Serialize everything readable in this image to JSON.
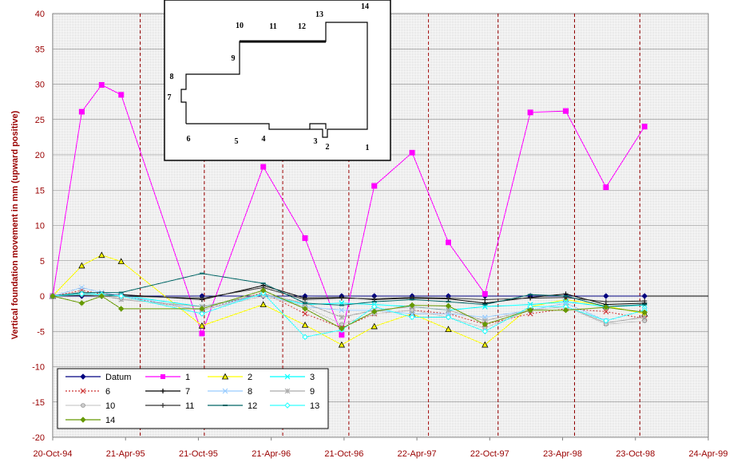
{
  "chart_data": {
    "type": "line",
    "ylabel": "Vertical foundation movement in mm (upward positive)",
    "ylim": [
      -20,
      40
    ],
    "yticks": [
      -20,
      -15,
      -10,
      -5,
      0,
      5,
      10,
      15,
      20,
      25,
      30,
      35,
      40
    ],
    "xlim": [
      "1994-10-20",
      "1999-04-24"
    ],
    "xticks": [
      {
        "date": "1994-10-20",
        "label": "20-Oct-94"
      },
      {
        "date": "1995-04-21",
        "label": "21-Apr-95"
      },
      {
        "date": "1995-10-21",
        "label": "21-Oct-95"
      },
      {
        "date": "1996-04-21",
        "label": "21-Apr-96"
      },
      {
        "date": "1996-10-21",
        "label": "21-Oct-96"
      },
      {
        "date": "1997-04-22",
        "label": "22-Apr-97"
      },
      {
        "date": "1997-10-22",
        "label": "22-Oct-97"
      },
      {
        "date": "1998-04-23",
        "label": "23-Apr-98"
      },
      {
        "date": "1998-10-23",
        "label": "23-Oct-98"
      },
      {
        "date": "1999-04-24",
        "label": "24-Apr-99"
      }
    ],
    "grid": true,
    "vertical_markers": [
      "1995-05-28",
      "1995-11-05",
      "1996-05-20",
      "1996-11-02",
      "1997-05-21",
      "1997-11-12",
      "1998-05-23",
      "1998-11-03"
    ],
    "x": [
      "1994-10-20",
      "1995-01-01",
      "1995-02-20",
      "1995-04-10",
      "1995-10-30",
      "1996-04-01",
      "1996-07-15",
      "1996-10-15",
      "1997-01-05",
      "1997-04-10",
      "1997-07-10",
      "1997-10-10",
      "1998-02-01",
      "1998-05-01",
      "1998-08-10",
      "1998-11-15"
    ],
    "series": [
      {
        "name": "Datum",
        "color": "#000080",
        "marker": "diamond",
        "values": [
          0,
          0,
          0,
          0,
          0,
          0,
          0,
          0,
          0,
          0,
          0,
          0,
          0,
          0,
          0,
          0
        ]
      },
      {
        "name": "1",
        "color": "#ff00ff",
        "marker": "square",
        "values": [
          0,
          26.1,
          29.9,
          28.5,
          -5.3,
          18.3,
          8.2,
          -5.5,
          15.6,
          20.3,
          7.6,
          0.3,
          26.0,
          26.2,
          15.4,
          24.0
        ]
      },
      {
        "name": "2",
        "color": "#ffff00",
        "marker": "triangle",
        "values": [
          0,
          4.3,
          5.8,
          4.9,
          -4.2,
          -1.2,
          -4.1,
          -6.9,
          -4.3,
          -2.5,
          -4.7,
          -6.9,
          -1.5,
          -0.5,
          -1.4,
          -2.5
        ]
      },
      {
        "name": "3",
        "color": "#00ffff",
        "marker": "x",
        "values": [
          0,
          0.5,
          0.2,
          0.1,
          -1.5,
          0.2,
          -1.2,
          -1.0,
          -1.2,
          -1.5,
          -2.0,
          -1.5,
          -1.2,
          -0.8,
          -1.5,
          -1.3
        ]
      },
      {
        "name": "6",
        "color": "#cc3333",
        "marker": "x",
        "dashed": true,
        "values": [
          0,
          0.8,
          0.3,
          0.0,
          -2.0,
          0.5,
          -2.5,
          -4.5,
          -2.5,
          -2.0,
          -2.5,
          -4.0,
          -2.5,
          -1.8,
          -2.2,
          -3.2
        ]
      },
      {
        "name": "7",
        "color": "#000000",
        "marker": "plus",
        "values": [
          0,
          0.3,
          0.2,
          0.2,
          -0.5,
          1.5,
          -0.3,
          -0.2,
          -0.5,
          -0.3,
          -0.4,
          -1.0,
          -0.2,
          0.3,
          -1.2,
          -1.0
        ]
      },
      {
        "name": "8",
        "color": "#99ccff",
        "marker": "x",
        "values": [
          0,
          1.2,
          0.5,
          0.1,
          -2.0,
          0.3,
          -1.5,
          -2.0,
          -2.0,
          -2.5,
          -2.5,
          -3.0,
          -2.0,
          -1.0,
          -3.5,
          -2.0
        ]
      },
      {
        "name": "9",
        "color": "#aaaaaa",
        "marker": "star",
        "values": [
          0,
          0.5,
          0.1,
          -0.5,
          -1.5,
          0.3,
          -1.0,
          -3.0,
          -2.0,
          -1.5,
          -2.0,
          -3.5,
          -2.0,
          -1.5,
          -3.8,
          -3.0
        ]
      },
      {
        "name": "10",
        "color": "#cccccc",
        "marker": "circle",
        "values": [
          0,
          0.2,
          0.0,
          -0.3,
          -2.0,
          0.0,
          -1.5,
          -4.0,
          -2.5,
          -2.0,
          -3.0,
          -4.5,
          -2.0,
          -1.5,
          -4.0,
          -3.5
        ]
      },
      {
        "name": "11",
        "color": "#333333",
        "marker": "plus",
        "values": [
          0,
          0.1,
          0.0,
          0.0,
          -0.3,
          1.2,
          -0.5,
          -0.3,
          -0.4,
          -0.2,
          -0.3,
          -0.5,
          -0.3,
          -0.2,
          -0.8,
          -0.7
        ]
      },
      {
        "name": "12",
        "color": "#006666",
        "marker": "dash",
        "values": [
          0,
          0.5,
          0.5,
          0.5,
          3.2,
          1.8,
          -1.0,
          -1.3,
          -0.8,
          -0.5,
          -0.8,
          -1.2,
          0.2,
          0.0,
          -1.5,
          -1.2
        ]
      },
      {
        "name": "13",
        "color": "#33ffff",
        "marker": "diamond-open",
        "values": [
          0,
          0.3,
          0.2,
          0.0,
          -2.5,
          0.4,
          -5.8,
          -4.8,
          -1.5,
          -3.0,
          -3.0,
          -5.0,
          -1.5,
          -1.5,
          -3.5,
          -2.0
        ]
      },
      {
        "name": "14",
        "color": "#669900",
        "marker": "diamond",
        "values": [
          0,
          -1.0,
          0.0,
          -1.8,
          -1.8,
          0.8,
          -1.8,
          -4.6,
          -2.2,
          -1.3,
          -1.4,
          -4.0,
          -2.0,
          -2.0,
          -1.6,
          -2.3
        ]
      }
    ],
    "legend_placement": "bottom-left",
    "inset_labels": [
      "1",
      "2",
      "3",
      "4",
      "5",
      "6",
      "7",
      "8",
      "9",
      "10",
      "11",
      "12",
      "13",
      "14"
    ]
  }
}
